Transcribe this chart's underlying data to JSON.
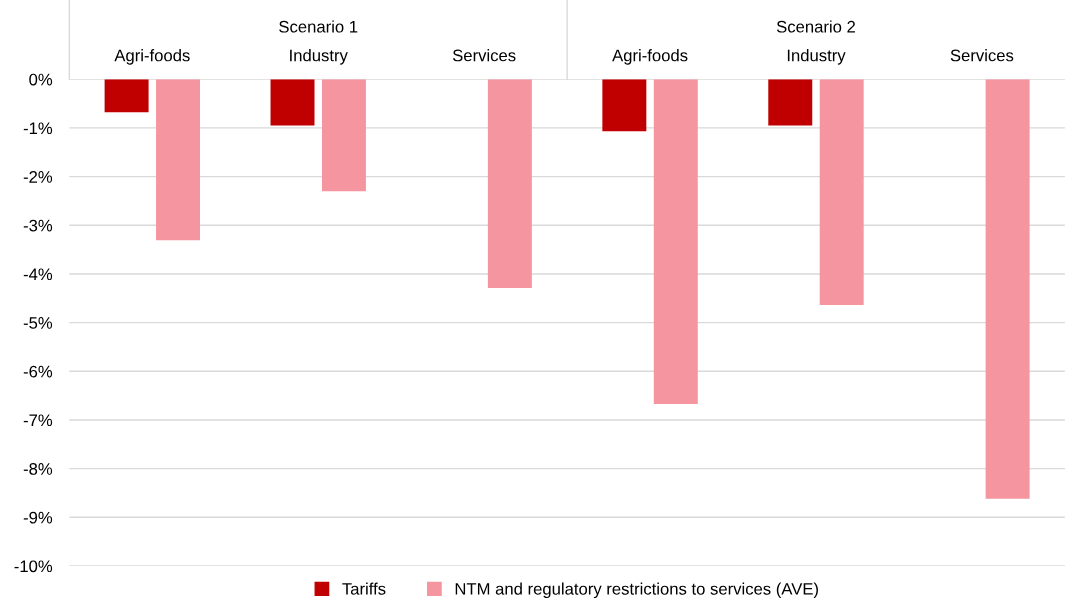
{
  "chart_data": {
    "type": "bar",
    "categories": [
      "Agri-foods",
      "Industry",
      "Services",
      "Agri-foods",
      "Industry",
      "Services"
    ],
    "annotations": [
      "Scenario 1",
      "Scenario 2"
    ],
    "series": [
      {
        "name": "Tariffs",
        "color": "#c00000",
        "values": [
          -0.68,
          -0.95,
          null,
          -1.07,
          -0.95,
          null
        ]
      },
      {
        "name": "NTM and regulatory restrictions to services (AVE)",
        "color": "#f595a0",
        "values": [
          -3.31,
          -2.3,
          -4.29,
          -6.67,
          -4.64,
          -8.62
        ]
      }
    ],
    "ylim": [
      -10,
      0
    ],
    "yticks": [
      {
        "value": 0,
        "label": "0%"
      },
      {
        "value": -1,
        "label": "-1%"
      },
      {
        "value": -2,
        "label": "-2%"
      },
      {
        "value": -3,
        "label": "-3%"
      },
      {
        "value": -4,
        "label": "-4%"
      },
      {
        "value": -5,
        "label": "-5%"
      },
      {
        "value": -6,
        "label": "-6%"
      },
      {
        "value": -7,
        "label": "-7%"
      },
      {
        "value": -8,
        "label": "-8%"
      },
      {
        "value": -9,
        "label": "-9%"
      },
      {
        "value": -10,
        "label": "-10%"
      }
    ],
    "grid": "y",
    "legend": "bottom"
  }
}
